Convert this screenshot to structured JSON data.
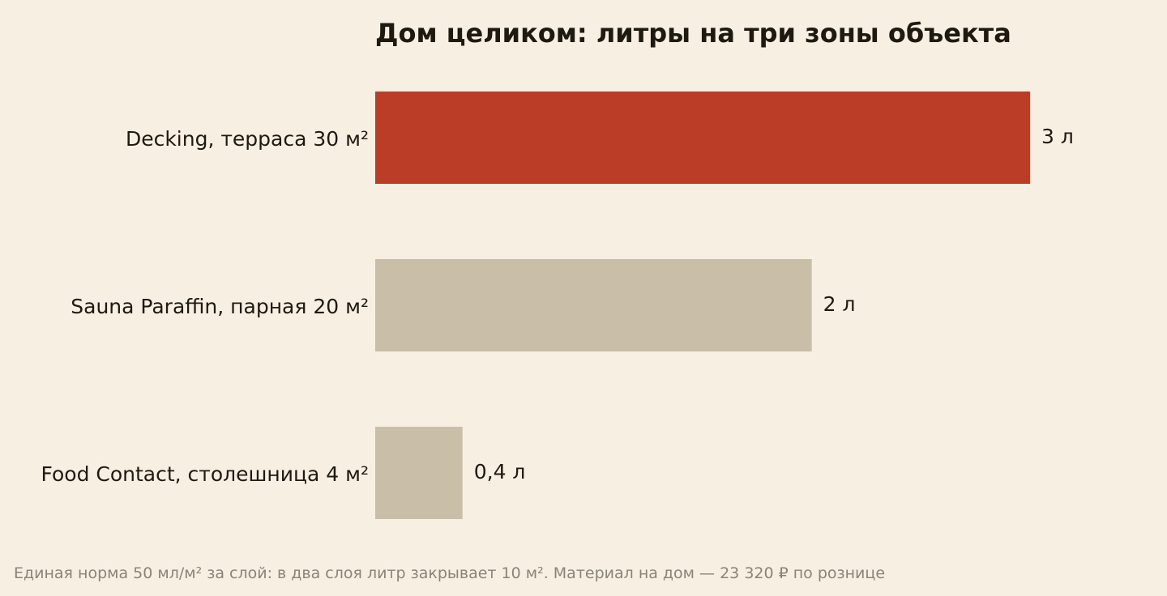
{
  "chart_data": {
    "type": "bar",
    "orientation": "horizontal",
    "title": "Дом целиком: литры на три зоны объекта",
    "categories": [
      "Decking, терраса 30 м²",
      "Sauna Paraffin, парная 20 м²",
      "Food Contact, столешница 4 м²"
    ],
    "values": [
      3,
      2,
      0.4
    ],
    "value_labels": [
      "3 л",
      "2 л",
      "0,4 л"
    ],
    "unit": "л",
    "xlim": [
      0,
      3
    ],
    "grid": false,
    "legend": "none",
    "bar_colors": [
      "#bc3d27",
      "#c9bfa8",
      "#c9bfa8"
    ]
  },
  "footnote": "Единая норма 50 мл/м² за слой: в два слоя литр закрывает 10 м². Материал на дом — 23 320 ₽ по рознице",
  "colors": {
    "background": "#f6efe2",
    "highlight": "#bc3d27",
    "muted_bar": "#c9bfa8",
    "text": "#1e1a12",
    "footnote_text": "#8a8478"
  }
}
